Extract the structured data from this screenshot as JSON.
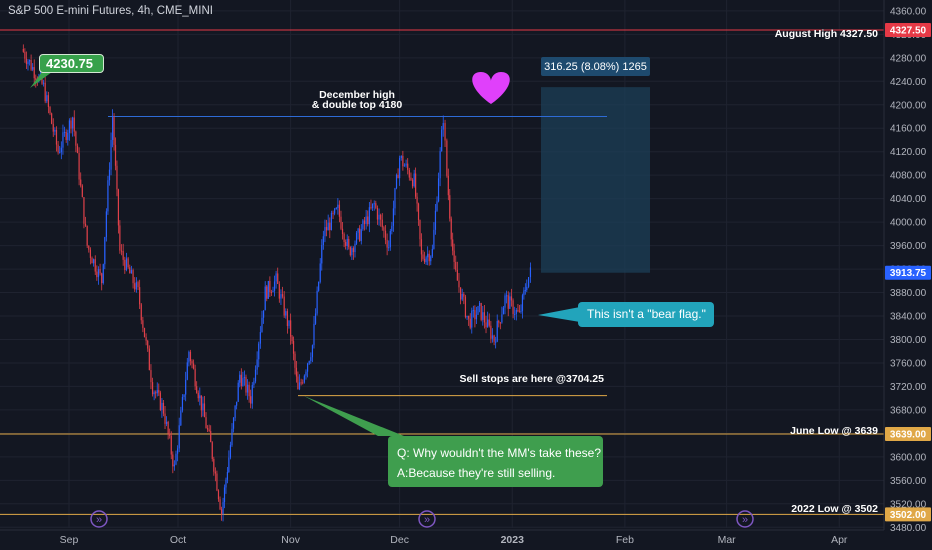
{
  "header": {
    "symbol_title": "S&P 500 E-mini Futures, 4h, CME_MINI"
  },
  "colors": {
    "background": "#131722",
    "grid": "#1f2330",
    "candle_up": "#2962ff",
    "candle_down": "#e0414a",
    "red_level": "#e63946",
    "orange_level": "#e0a847",
    "blue_line": "#2e6bd6",
    "measure_box": "#1c3f57",
    "heart": "#e040fb",
    "event_icon": "#7e57c2"
  },
  "annotations": {
    "december_high_line1": "December high",
    "december_high_line2": "& double top 4180",
    "measure_label": "316.25 (8.08%) 1265",
    "august_high": "August High 4327.50",
    "sell_stops": "Sell stops are here @3704.25",
    "june_low": "June Low @ 3639",
    "low_2022": "2022 Low @ 3502",
    "callout_4230": "4230.75",
    "callout_bear_flag": "This isn't a \"bear flag.\"",
    "callout_mm_q": "Q:  Why wouldn't the MM's take these?",
    "callout_mm_a": "A:Because they're still selling."
  },
  "chart_data": {
    "type": "candlestick",
    "title": "S&P 500 E-mini Futures, 4h, CME_MINI",
    "y_axis": {
      "range": [
        3460,
        4370
      ],
      "ticks": [
        3480,
        3520,
        3560,
        3600,
        3640,
        3680,
        3720,
        3760,
        3800,
        3840,
        3880,
        3920,
        3960,
        4000,
        4040,
        4080,
        4120,
        4160,
        4200,
        4240,
        4280,
        4320,
        4360
      ],
      "tick_labels": [
        "3480.00",
        "3520.00",
        "3560.00",
        "3600.00",
        "3640.00",
        "3680.00",
        "3720.00",
        "3760.00",
        "3800.00",
        "3840.00",
        "3880.00",
        "3920.00",
        "3960.00",
        "4000.00",
        "4040.00",
        "4080.00",
        "4120.00",
        "4160.00",
        "4200.00",
        "4240.00",
        "4280.00",
        "4320.00",
        "4360.00"
      ]
    },
    "x_axis": {
      "ticks": [
        "Sep",
        "Oct",
        "Nov",
        "Dec",
        "2023",
        "Feb",
        "Mar",
        "Apr"
      ],
      "tick_dates": [
        "2022-09-01",
        "2022-10-01",
        "2022-11-01",
        "2022-12-01",
        "2023-01-01",
        "2023-02-01",
        "2023-03-01",
        "2023-04-01"
      ]
    },
    "price_badges": [
      {
        "value": 4327.5,
        "label": "4327.50",
        "color": "#e63946"
      },
      {
        "value": 3913.75,
        "label": "3913.75",
        "color": "#2962ff"
      },
      {
        "value": 3639,
        "label": "3639.00",
        "color": "#e0a847"
      },
      {
        "value": 3502,
        "label": "3502.00",
        "color": "#e0a847"
      }
    ],
    "levels": [
      {
        "name": "August High",
        "value": 4327.5
      },
      {
        "name": "December high & double top",
        "value": 4180
      },
      {
        "name": "Sell stops",
        "value": 3704.25
      },
      {
        "name": "June Low",
        "value": 3639
      },
      {
        "name": "2022 Low",
        "value": 3502
      }
    ],
    "measure": {
      "from": 3913.75,
      "to": 4230,
      "change": 316.25,
      "percent": 8.08,
      "bars": 1265
    },
    "price_path": [
      [
        "2022-08-19",
        4295
      ],
      [
        "2022-08-25",
        4230
      ],
      [
        "2022-08-29",
        4120
      ],
      [
        "2022-09-02",
        4180
      ],
      [
        "2022-09-06",
        3960
      ],
      [
        "2022-09-10",
        3900
      ],
      [
        "2022-09-13",
        4180
      ],
      [
        "2022-09-15",
        3950
      ],
      [
        "2022-09-20",
        3880
      ],
      [
        "2022-09-24",
        3720
      ],
      [
        "2022-09-27",
        3680
      ],
      [
        "2022-09-30",
        3580
      ],
      [
        "2022-10-04",
        3780
      ],
      [
        "2022-10-07",
        3700
      ],
      [
        "2022-10-10",
        3620
      ],
      [
        "2022-10-13",
        3505
      ],
      [
        "2022-10-15",
        3600
      ],
      [
        "2022-10-18",
        3740
      ],
      [
        "2022-10-21",
        3700
      ],
      [
        "2022-10-25",
        3880
      ],
      [
        "2022-10-28",
        3900
      ],
      [
        "2022-11-01",
        3810
      ],
      [
        "2022-11-03",
        3710
      ],
      [
        "2022-11-07",
        3790
      ],
      [
        "2022-11-10",
        3980
      ],
      [
        "2022-11-14",
        4020
      ],
      [
        "2022-11-17",
        3950
      ],
      [
        "2022-11-20",
        3980
      ],
      [
        "2022-11-24",
        4030
      ],
      [
        "2022-11-28",
        3960
      ],
      [
        "2022-12-01",
        4110
      ],
      [
        "2022-12-05",
        4070
      ],
      [
        "2022-12-07",
        3940
      ],
      [
        "2022-12-10",
        3950
      ],
      [
        "2022-12-13",
        4180
      ],
      [
        "2022-12-14",
        4080
      ],
      [
        "2022-12-16",
        3920
      ],
      [
        "2022-12-20",
        3830
      ],
      [
        "2022-12-23",
        3850
      ],
      [
        "2022-12-27",
        3800
      ],
      [
        "2022-12-30",
        3870
      ],
      [
        "2023-01-03",
        3840
      ],
      [
        "2023-01-05",
        3900
      ],
      [
        "2023-01-06",
        3913.75
      ]
    ]
  }
}
